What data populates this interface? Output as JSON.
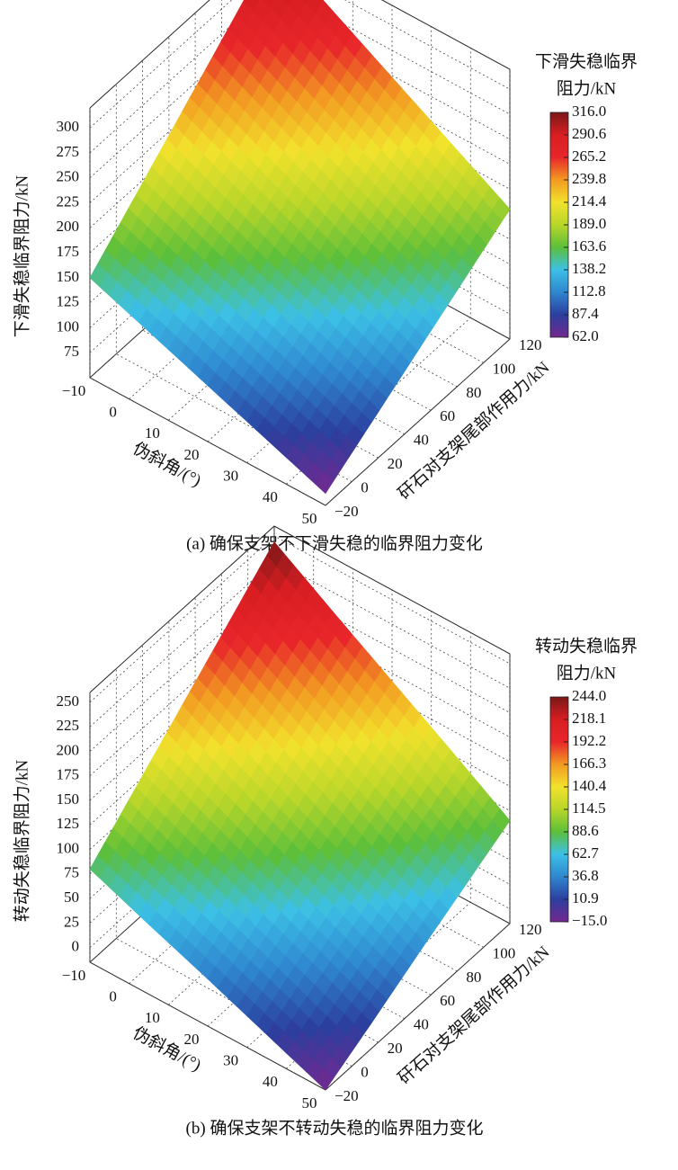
{
  "chart_data": [
    {
      "type": "surface",
      "zlabel": "下滑失稳临界阻力/kN",
      "xlabel": "伪斜角/(°)",
      "ylabel": "矸石对支架尾部作用力/kN",
      "caption": "(a)  确保支架不下滑失稳的临界阻力变化",
      "colorbar_title": [
        "下滑失稳临界",
        "阻力/kN"
      ],
      "xlim": [
        -10,
        50
      ],
      "ylim": [
        -20,
        120
      ],
      "zlim": [
        50,
        320
      ],
      "xticks": [
        {
          "value": -10,
          "label": "−10"
        },
        0,
        10,
        20,
        30,
        40,
        50
      ],
      "yticks": [
        {
          "value": -20,
          "label": "−20"
        },
        0,
        20,
        40,
        60,
        80,
        100,
        120
      ],
      "zticks": [
        75,
        100,
        125,
        150,
        175,
        200,
        225,
        250,
        275,
        300
      ],
      "clim": [
        62,
        316
      ],
      "cticks": [
        {
          "value": 62,
          "label": "62.0"
        },
        87.4,
        112.8,
        138.2,
        163.6,
        {
          "value": 189,
          "label": "189.0"
        },
        214.4,
        239.8,
        265.2,
        290.6,
        {
          "value": 316,
          "label": "316.0"
        }
      ],
      "colormap": [
        "#74288f",
        "#2b3f9e",
        "#2f86cf",
        "#3cc0e6",
        "#5cbf3a",
        "#b8d62a",
        "#f2e22c",
        "#f29a22",
        "#e8262a",
        "#d81e22",
        "#7a1717"
      ],
      "grid": true,
      "x": [
        -10,
        5,
        20,
        35,
        50
      ],
      "y": [
        -20,
        15,
        50,
        85,
        120
      ],
      "z": [
        [
          150,
          191.5,
          233,
          274.5,
          316
        ],
        [
          128,
          166.5,
          205,
          243.5,
          282
        ],
        [
          106,
          141.5,
          177,
          212.5,
          248
        ],
        [
          84,
          116.5,
          149,
          181.5,
          214
        ],
        [
          62,
          91.5,
          121,
          150.5,
          180
        ]
      ]
    },
    {
      "type": "surface",
      "zlabel": "转动失稳临界阻力/kN",
      "xlabel": "伪斜角/(°)",
      "ylabel": "矸石对支架尾部作用力/kN",
      "caption": "(b)  确保支架不转动失稳的临界阻力变化",
      "colorbar_title": [
        "转动失稳临界",
        "阻力/kN"
      ],
      "xlim": [
        -10,
        50
      ],
      "ylim": [
        -20,
        120
      ],
      "zlim": [
        -15,
        260
      ],
      "xticks": [
        {
          "value": -10,
          "label": "−10"
        },
        0,
        10,
        20,
        30,
        40,
        50
      ],
      "yticks": [
        {
          "value": -20,
          "label": "−20"
        },
        0,
        20,
        40,
        60,
        80,
        100,
        120
      ],
      "zticks": [
        0,
        25,
        50,
        75,
        100,
        125,
        150,
        175,
        200,
        225,
        250
      ],
      "clim": [
        -15,
        244
      ],
      "cticks": [
        {
          "value": -15,
          "label": "−15.0"
        },
        10.9,
        36.8,
        62.7,
        88.6,
        114.5,
        140.4,
        166.3,
        192.2,
        218.1,
        {
          "value": 244,
          "label": "244.0"
        }
      ],
      "colormap": [
        "#74288f",
        "#2b3f9e",
        "#2f86cf",
        "#3cc0e6",
        "#5cbf3a",
        "#b8d62a",
        "#f2e22c",
        "#f29a22",
        "#e8262a",
        "#d81e22",
        "#7a1717"
      ],
      "grid": true,
      "x": [
        -10,
        5,
        20,
        35,
        50
      ],
      "y": [
        -20,
        15,
        50,
        85,
        120
      ],
      "z": [
        [
          80,
          121,
          162,
          203,
          244
        ],
        [
          56,
          93,
          131,
          168,
          205
        ],
        [
          33,
          66,
          100,
          134,
          167
        ],
        [
          9,
          39,
          69,
          99,
          129
        ],
        [
          -15,
          11,
          38,
          64,
          90
        ]
      ]
    }
  ]
}
